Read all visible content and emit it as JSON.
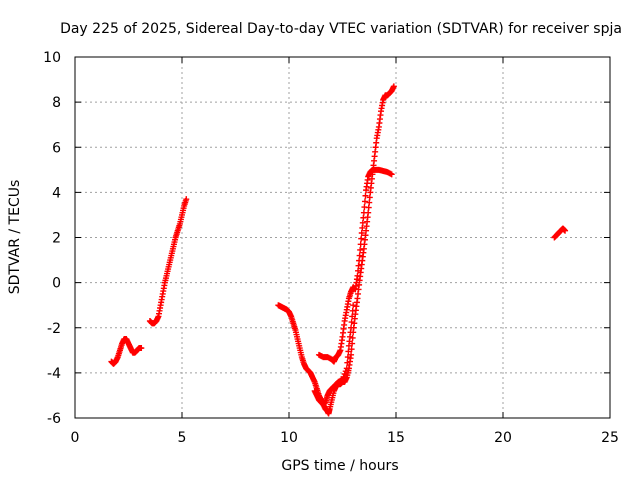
{
  "chart_data": {
    "type": "scatter",
    "title": "Day 225 of 2025, Sidereal Day-to-day VTEC variation (SDTVAR) for receiver spja",
    "xlabel": "GPS time / hours",
    "ylabel": "SDTVAR / TECUs",
    "xlim": [
      0,
      25
    ],
    "ylim": [
      -6,
      10
    ],
    "xticks": [
      0,
      5,
      10,
      15,
      20,
      25
    ],
    "yticks": [
      -6,
      -4,
      -2,
      0,
      2,
      4,
      6,
      8,
      10
    ],
    "xtick_labels": [
      "0",
      "5",
      "10",
      "15",
      "20",
      "25"
    ],
    "ytick_labels": [
      "-6",
      "-4",
      "-2",
      "0",
      "2",
      "4",
      "6",
      "8",
      "10"
    ],
    "grid": true,
    "marker": "plus",
    "series": [
      {
        "color": "#ff0000",
        "segments": [
          [
            [
              1.7,
              -3.5
            ],
            [
              1.8,
              -3.6
            ],
            [
              1.9,
              -3.5
            ],
            [
              2.0,
              -3.3
            ],
            [
              2.1,
              -3.0
            ],
            [
              2.2,
              -2.7
            ],
            [
              2.3,
              -2.5
            ],
            [
              2.4,
              -2.5
            ],
            [
              2.5,
              -2.7
            ],
            [
              2.6,
              -2.9
            ],
            [
              2.7,
              -3.1
            ],
            [
              2.8,
              -3.1
            ],
            [
              2.9,
              -3.0
            ],
            [
              3.0,
              -2.9
            ],
            [
              3.1,
              -2.9
            ]
          ],
          [
            [
              3.5,
              -1.7
            ],
            [
              3.6,
              -1.8
            ],
            [
              3.7,
              -1.8
            ],
            [
              3.8,
              -1.7
            ],
            [
              3.9,
              -1.5
            ],
            [
              4.0,
              -1.0
            ],
            [
              4.1,
              -0.5
            ],
            [
              4.2,
              0.0
            ],
            [
              4.3,
              0.4
            ],
            [
              4.4,
              0.8
            ],
            [
              4.5,
              1.2
            ],
            [
              4.6,
              1.6
            ],
            [
              4.7,
              2.0
            ],
            [
              4.8,
              2.3
            ],
            [
              4.9,
              2.6
            ],
            [
              5.0,
              3.0
            ],
            [
              5.1,
              3.4
            ],
            [
              5.2,
              3.7
            ]
          ],
          [
            [
              9.5,
              -1.0
            ],
            [
              9.6,
              -1.05
            ],
            [
              9.7,
              -1.1
            ],
            [
              9.8,
              -1.15
            ],
            [
              9.9,
              -1.2
            ],
            [
              10.0,
              -1.3
            ],
            [
              10.1,
              -1.5
            ],
            [
              10.2,
              -1.8
            ],
            [
              10.3,
              -2.1
            ],
            [
              10.4,
              -2.5
            ],
            [
              10.5,
              -2.9
            ],
            [
              10.6,
              -3.3
            ],
            [
              10.7,
              -3.6
            ],
            [
              10.8,
              -3.8
            ],
            [
              10.9,
              -3.9
            ],
            [
              11.0,
              -4.0
            ],
            [
              11.1,
              -4.2
            ],
            [
              11.2,
              -4.4
            ],
            [
              11.3,
              -4.7
            ],
            [
              11.4,
              -5.0
            ],
            [
              11.5,
              -5.2
            ],
            [
              11.6,
              -5.4
            ],
            [
              11.7,
              -5.6
            ],
            [
              11.8,
              -5.7
            ],
            [
              11.85,
              -5.8
            ],
            [
              11.9,
              -5.6
            ],
            [
              12.0,
              -5.2
            ],
            [
              12.1,
              -4.8
            ],
            [
              12.2,
              -4.6
            ],
            [
              12.3,
              -4.5
            ],
            [
              12.4,
              -4.5
            ],
            [
              12.5,
              -4.4
            ],
            [
              12.6,
              -4.4
            ],
            [
              12.7,
              -4.2
            ],
            [
              12.8,
              -3.8
            ],
            [
              12.9,
              -3.2
            ],
            [
              13.0,
              -2.2
            ],
            [
              13.1,
              -1.4
            ],
            [
              13.2,
              -0.7
            ],
            [
              13.3,
              0.1
            ],
            [
              13.4,
              0.8
            ],
            [
              13.5,
              1.5
            ],
            [
              13.6,
              2.3
            ],
            [
              13.7,
              3.1
            ],
            [
              13.8,
              4.0
            ],
            [
              13.9,
              4.8
            ],
            [
              14.0,
              5.6
            ],
            [
              14.1,
              6.4
            ],
            [
              14.2,
              6.9
            ],
            [
              14.3,
              7.6
            ],
            [
              14.4,
              8.1
            ],
            [
              14.5,
              8.3
            ],
            [
              14.6,
              8.3
            ],
            [
              14.7,
              8.4
            ],
            [
              14.8,
              8.5
            ],
            [
              14.9,
              8.7
            ]
          ],
          [
            [
              11.4,
              -3.2
            ],
            [
              11.6,
              -3.3
            ],
            [
              11.8,
              -3.3
            ],
            [
              12.0,
              -3.4
            ],
            [
              12.1,
              -3.5
            ],
            [
              12.2,
              -3.3
            ],
            [
              12.3,
              -3.2
            ],
            [
              12.4,
              -3.0
            ],
            [
              12.5,
              -2.4
            ],
            [
              12.6,
              -1.7
            ],
            [
              12.7,
              -1.2
            ],
            [
              12.8,
              -0.7
            ],
            [
              12.9,
              -0.4
            ],
            [
              13.0,
              -0.2
            ],
            [
              13.1,
              -0.3
            ],
            [
              13.2,
              0.3
            ],
            [
              13.3,
              1.2
            ],
            [
              13.4,
              2.2
            ],
            [
              13.5,
              3.1
            ],
            [
              13.6,
              4.1
            ],
            [
              13.7,
              4.7
            ],
            [
              13.8,
              4.9
            ],
            [
              13.9,
              5.0
            ],
            [
              14.0,
              5.0
            ],
            [
              14.2,
              5.0
            ],
            [
              14.4,
              4.95
            ],
            [
              14.6,
              4.9
            ],
            [
              14.8,
              4.8
            ]
          ],
          [
            [
              11.2,
              -4.8
            ],
            [
              11.3,
              -5.0
            ],
            [
              11.4,
              -5.2
            ],
            [
              11.5,
              -5.3
            ],
            [
              11.6,
              -5.4
            ],
            [
              11.7,
              -5.3
            ],
            [
              11.8,
              -5.0
            ],
            [
              11.9,
              -4.8
            ],
            [
              12.0,
              -4.7
            ],
            [
              12.1,
              -4.6
            ],
            [
              12.3,
              -4.4
            ],
            [
              12.5,
              -4.3
            ],
            [
              12.7,
              -3.8
            ],
            [
              12.8,
              -2.8
            ],
            [
              12.9,
              -2.0
            ],
            [
              13.0,
              -1.0
            ]
          ],
          [
            [
              22.4,
              2.0
            ],
            [
              22.5,
              2.1
            ],
            [
              22.6,
              2.2
            ],
            [
              22.7,
              2.3
            ],
            [
              22.8,
              2.4
            ],
            [
              22.9,
              2.3
            ]
          ]
        ]
      }
    ]
  }
}
